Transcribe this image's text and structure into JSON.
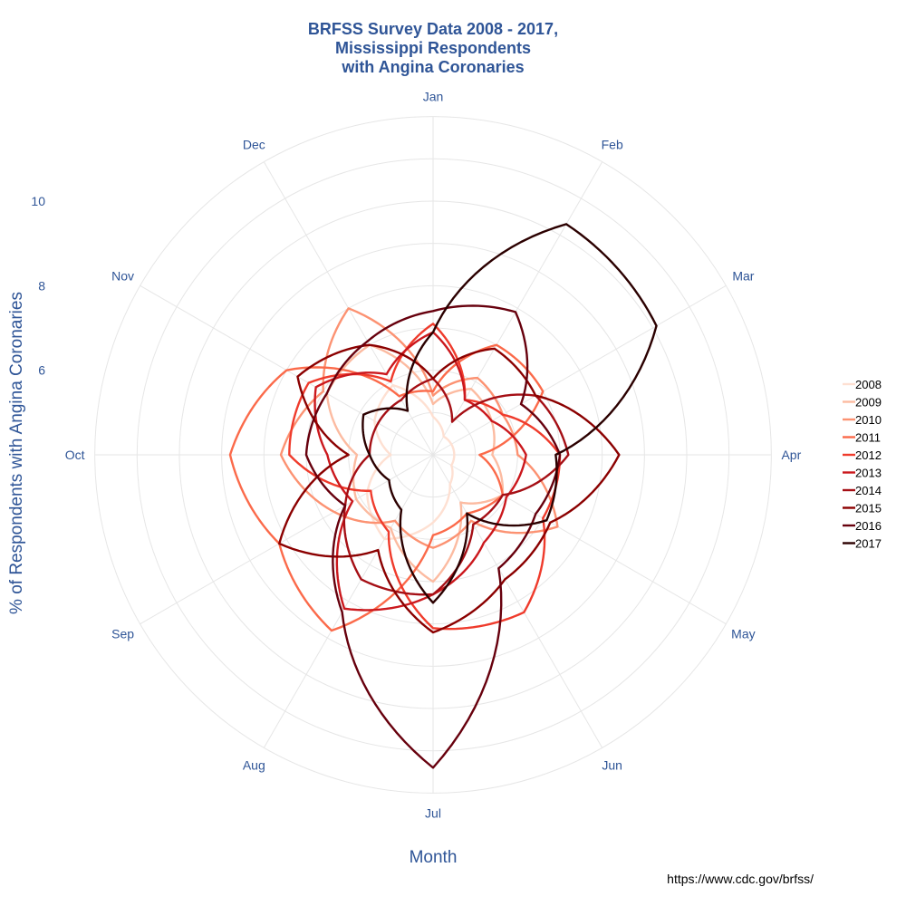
{
  "chart_data": {
    "type": "line",
    "coordinate_system": "polar",
    "title_lines": [
      "BRFSS Survey Data 2008 - 2017,",
      "Mississippi Respondents",
      "with Angina Coronaries"
    ],
    "xlabel": "Month",
    "ylabel": "% of Respondents with Angina Coronaries",
    "source": "https://www.cdc.gov/brfss/",
    "categories": [
      "Jan",
      "Feb",
      "Mar",
      "Apr",
      "May",
      "Jun",
      "Jul",
      "Aug",
      "Sep",
      "Oct",
      "Nov",
      "Dec"
    ],
    "ylim": [
      4,
      11
    ],
    "yticks": [
      "6",
      "8",
      "10"
    ],
    "ytick_values": [
      6,
      8,
      10
    ],
    "grid": true,
    "legend_position": "right",
    "series": [
      {
        "name": "2008",
        "color": "#FEE0D2",
        "values": [
          4.9,
          4.5,
          4.5,
          4.5,
          4.5,
          4.8,
          5.6,
          6.3,
          5.8,
          5.0,
          5.6,
          5.9
        ]
      },
      {
        "name": "2009",
        "color": "#FCBBA1",
        "values": [
          5.2,
          5.8,
          5.6,
          5.4,
          5.9,
          5.3,
          7.0,
          6.0,
          6.1,
          5.8,
          6.9,
          7.0
        ]
      },
      {
        "name": "2010",
        "color": "#FC9272",
        "values": [
          5.4,
          6.1,
          5.9,
          6.0,
          7.4,
          5.8,
          6.2,
          5.8,
          6.7,
          7.6,
          7.0,
          8.0
        ]
      },
      {
        "name": "2011",
        "color": "#FB6A4A",
        "values": [
          5.5,
          7.0,
          7.0,
          5.1,
          5.9,
          5.6,
          5.9,
          8.8,
          8.2,
          8.8,
          8.0,
          5.6
        ]
      },
      {
        "name": "2012",
        "color": "#EF3B2C",
        "values": [
          7.1,
          5.5,
          5.9,
          7.0,
          7.0,
          8.3,
          8.1,
          6.1,
          5.7,
          7.4,
          7.4,
          6.0
        ]
      },
      {
        "name": "2013",
        "color": "#CB181D",
        "values": [
          6.9,
          5.5,
          5.6,
          6.2,
          6.0,
          6.4,
          7.3,
          8.2,
          6.2,
          6.5,
          7.2,
          6.2
        ]
      },
      {
        "name": "2014",
        "color": "#A50F15",
        "values": [
          5.8,
          4.9,
          6.8,
          7.2,
          5.9,
          5.9,
          7.3,
          7.4,
          6.4,
          5.5,
          5.5,
          5.5
        ]
      },
      {
        "name": "2015",
        "color": "#8B0000",
        "values": [
          5.8,
          6.9,
          6.8,
          8.4,
          7.2,
          7.4,
          8.2,
          6.6,
          8.2,
          6.0,
          7.7,
          7.0
        ]
      },
      {
        "name": "2016",
        "color": "#67000D",
        "values": [
          7.4,
          7.9,
          6.4,
          7.0,
          6.8,
          7.1,
          11.4,
          8.3,
          6.4,
          7.0,
          6.9,
          7.1
        ]
      },
      {
        "name": "2017",
        "color": "#2B0000",
        "values": [
          6.9,
          10.3,
          10.1,
          6.9,
          7.1,
          5.6,
          7.5,
          5.5,
          5.2,
          5.5,
          5.9,
          5.2
        ]
      }
    ]
  }
}
